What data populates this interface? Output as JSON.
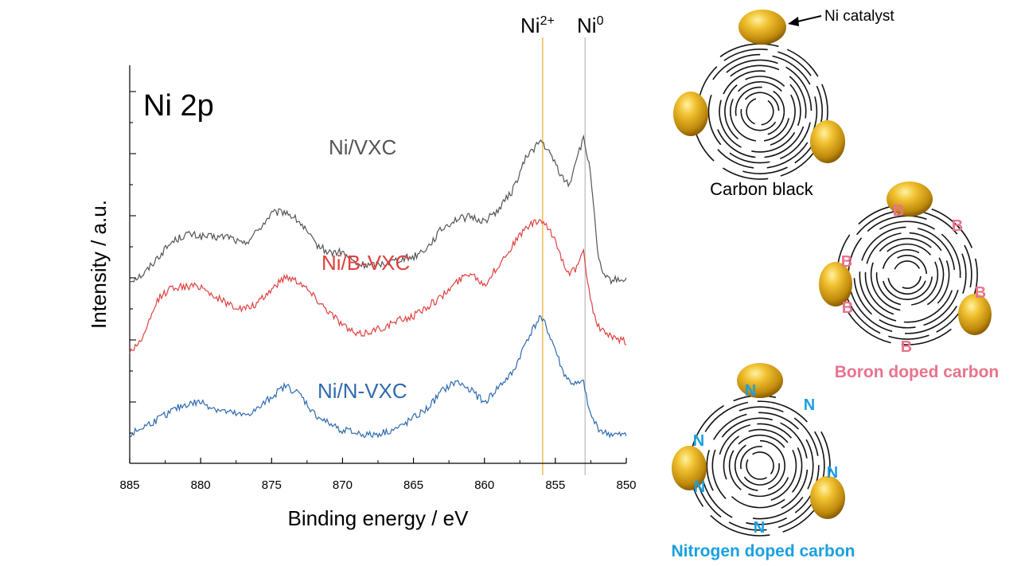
{
  "chart_data": {
    "type": "line",
    "panel_label": "Ni 2p",
    "xlabel": "Binding energy / eV",
    "ylabel": "Intensity / a.u.",
    "xlim": [
      885,
      850
    ],
    "x_reversed": true,
    "x_ticks": [
      885,
      880,
      875,
      870,
      865,
      860,
      855,
      850
    ],
    "y_ticks_unlabeled": true,
    "grid": false,
    "reference_lines": [
      {
        "label": "Ni",
        "sup": "2+",
        "x": 855.9,
        "color": "#f0c060"
      },
      {
        "label": "Ni",
        "sup": "0",
        "x": 852.9,
        "color": "#c8c8c8"
      }
    ],
    "series": [
      {
        "name": "Ni/VXC",
        "color": "#555555",
        "x": [
          885,
          884,
          883,
          882,
          881,
          880,
          879,
          878,
          877,
          876,
          875,
          874,
          873,
          872,
          871,
          870,
          869,
          868,
          867,
          866,
          865,
          864,
          863,
          862,
          861,
          860,
          859,
          858,
          857,
          856,
          855,
          854.5,
          854,
          853.5,
          853,
          852.5,
          852,
          851.5,
          851,
          850.5,
          850
        ],
        "y": [
          0.9,
          0.96,
          1.12,
          1.26,
          1.33,
          1.31,
          1.3,
          1.31,
          1.23,
          1.36,
          1.52,
          1.54,
          1.44,
          1.25,
          1.16,
          1.16,
          1.05,
          1.04,
          1.06,
          1.1,
          1.12,
          1.21,
          1.38,
          1.47,
          1.49,
          1.45,
          1.56,
          1.74,
          2.06,
          2.2,
          1.99,
          1.85,
          1.79,
          2.05,
          2.21,
          1.9,
          1.1,
          0.92,
          0.9,
          0.91,
          0.91
        ]
      },
      {
        "name": "Ni/B-VXC",
        "color": "#e04040",
        "x": [
          885,
          884,
          883,
          882,
          881,
          880,
          879,
          878,
          877,
          876,
          875,
          874,
          873,
          872,
          871,
          870,
          869,
          868,
          867,
          866,
          865,
          864,
          863,
          862,
          861,
          860,
          859,
          858,
          857,
          856,
          855,
          854.5,
          854,
          853.5,
          853,
          852.5,
          852,
          851.5,
          851,
          850.5,
          850
        ],
        "y": [
          0.23,
          0.38,
          0.73,
          0.84,
          0.84,
          0.85,
          0.75,
          0.68,
          0.63,
          0.68,
          0.82,
          0.94,
          0.89,
          0.75,
          0.62,
          0.49,
          0.39,
          0.43,
          0.47,
          0.53,
          0.57,
          0.66,
          0.75,
          0.88,
          0.98,
          0.86,
          1.04,
          1.23,
          1.4,
          1.46,
          1.28,
          1.08,
          0.97,
          1.01,
          1.16,
          0.7,
          0.47,
          0.42,
          0.36,
          0.35,
          0.33
        ]
      },
      {
        "name": "Ni/N-VXC",
        "color": "#2e6ab0",
        "x": [
          885,
          884,
          883,
          882,
          881,
          880,
          879,
          878,
          877,
          876,
          875,
          874,
          873,
          872,
          871,
          870,
          869,
          868,
          867,
          866,
          865,
          864,
          863,
          862,
          861,
          860,
          859,
          858,
          857,
          856,
          855,
          854.5,
          854,
          853.5,
          853,
          852.5,
          852,
          851.5,
          851,
          850.5,
          850
        ],
        "y": [
          -0.54,
          -0.46,
          -0.39,
          -0.31,
          -0.25,
          -0.23,
          -0.29,
          -0.33,
          -0.36,
          -0.3,
          -0.18,
          -0.08,
          -0.16,
          -0.34,
          -0.43,
          -0.49,
          -0.52,
          -0.54,
          -0.51,
          -0.47,
          -0.38,
          -0.29,
          -0.13,
          -0.04,
          -0.11,
          -0.24,
          -0.09,
          0.04,
          0.35,
          0.58,
          0.26,
          0.06,
          -0.04,
          -0.07,
          -0.05,
          -0.36,
          -0.47,
          -0.52,
          -0.53,
          -0.54,
          -0.54
        ]
      }
    ]
  },
  "schematic": {
    "callout": "Ni catalyst",
    "carbon_black": {
      "caption": "Carbon black"
    },
    "boron": {
      "caption": "Boron doped carbon",
      "dopant": "B",
      "color": "#e8738c"
    },
    "nitrogen": {
      "caption": "Nitrogen doped carbon",
      "dopant": "N",
      "color": "#1aa0e0"
    }
  }
}
